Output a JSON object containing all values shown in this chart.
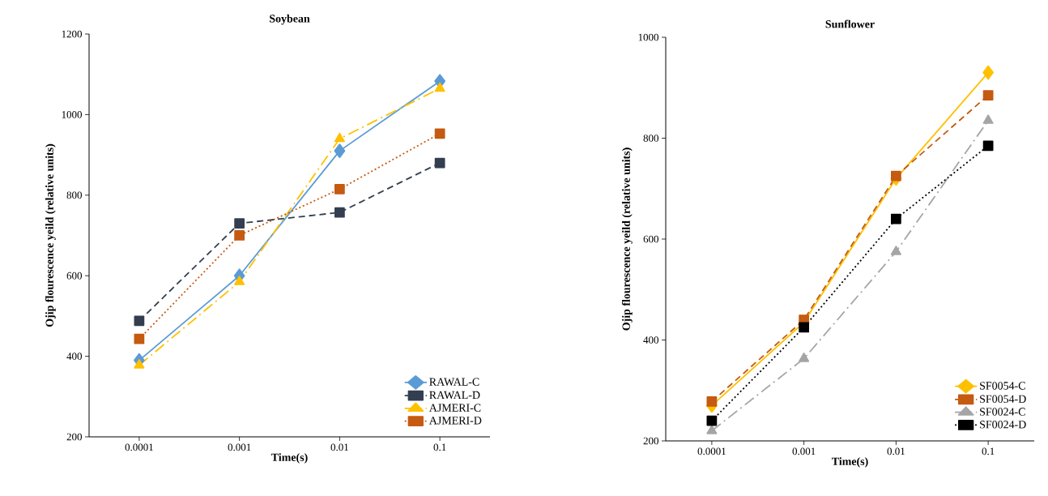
{
  "chart_data": [
    {
      "type": "line",
      "title": "Soybean",
      "xlabel": "Time(s)",
      "ylabel": "Ojip flourescence yeild (relative units)",
      "categories": [
        "0.0001",
        "0.001",
        "0.01",
        "0.1"
      ],
      "ylim": [
        200,
        1200
      ],
      "yticks": [
        200,
        400,
        600,
        800,
        1000,
        1200
      ],
      "grid": false,
      "legend": "bottom right",
      "series": [
        {
          "name": "RAWAL-C",
          "color": "#5b9bd5",
          "marker": "diamond",
          "line_style": "solid",
          "values": [
            390,
            600,
            910,
            1083
          ]
        },
        {
          "name": "RAWAL-D",
          "color": "#333f50",
          "marker": "square",
          "line_style": "dashed",
          "values": [
            488,
            730,
            757,
            880
          ]
        },
        {
          "name": "AJMERI-C",
          "color": "#ffc000",
          "marker": "triangle",
          "line_style": "dashdot",
          "values": [
            378,
            585,
            940,
            1065
          ]
        },
        {
          "name": "AJMERI-D",
          "color": "#c55a11",
          "marker": "square",
          "line_style": "dotted",
          "values": [
            443,
            700,
            815,
            953
          ]
        }
      ]
    },
    {
      "type": "line",
      "title": "Sunflower",
      "xlabel": "Time(s)",
      "ylabel": "Ojip flourescence yeild (relative units)",
      "categories": [
        "0.0001",
        "0.001",
        "0.01",
        "0.1"
      ],
      "ylim": [
        200,
        1000
      ],
      "yticks": [
        200,
        400,
        600,
        800,
        1000
      ],
      "grid": false,
      "legend": "bottom right",
      "series": [
        {
          "name": "SF0054-C",
          "color": "#ffc000",
          "marker": "diamond",
          "line_style": "solid",
          "values": [
            270,
            435,
            720,
            930
          ]
        },
        {
          "name": "SF0054-D",
          "color": "#c55a11",
          "marker": "square",
          "line_style": "dashed",
          "values": [
            278,
            440,
            725,
            885
          ]
        },
        {
          "name": "SF0024-C",
          "color": "#a5a5a5",
          "marker": "triangle",
          "line_style": "dashdot",
          "values": [
            220,
            363,
            575,
            835
          ]
        },
        {
          "name": "SF0024-D",
          "color": "#000000",
          "marker": "square",
          "line_style": "dotted",
          "values": [
            240,
            425,
            640,
            785
          ]
        }
      ]
    }
  ]
}
